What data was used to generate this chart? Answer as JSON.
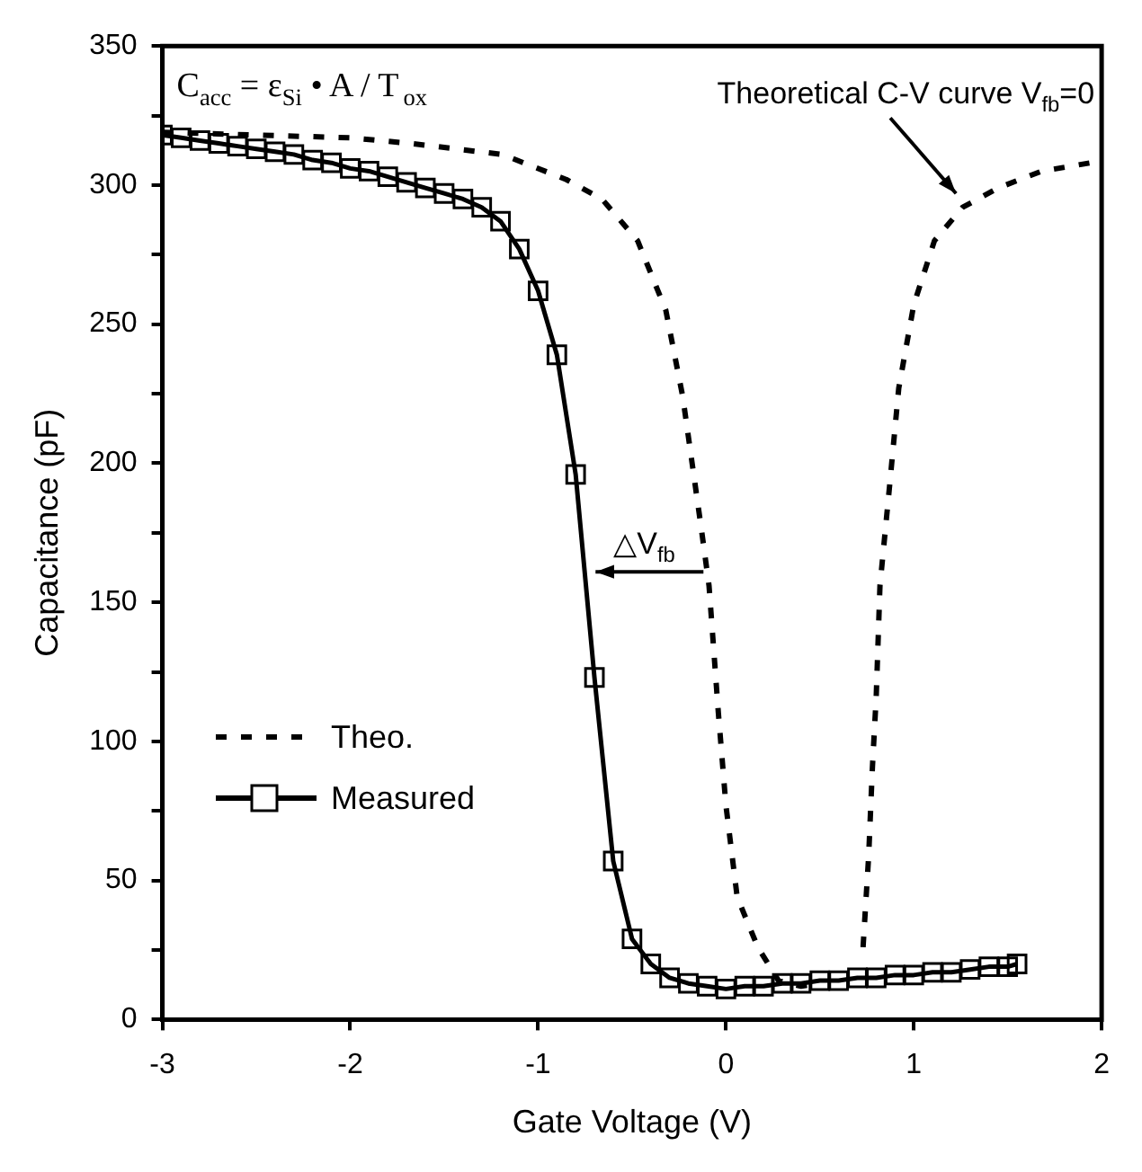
{
  "chart_data": {
    "type": "line",
    "xlabel": "Gate Voltage (V)",
    "ylabel": "Capacitance (pF)",
    "xlim": [
      -3,
      2
    ],
    "xticks": [
      -3,
      -2,
      -1,
      0,
      1,
      2
    ],
    "ylim": [
      0,
      350
    ],
    "yticks": [
      0,
      {
        "value": 25,
        "label": null
      },
      50,
      {
        "value": 75,
        "label": null
      },
      100,
      {
        "value": 125,
        "label": null
      },
      150,
      {
        "value": 175,
        "label": null
      },
      200,
      {
        "value": 225,
        "label": null
      },
      250,
      {
        "value": 275,
        "label": null
      },
      300,
      {
        "value": 325,
        "label": null
      },
      350
    ],
    "grid": false,
    "legend": "bottom left",
    "annotations": [
      "C$_{acc}$ = ε$_{Si}$ • A / T$_{ox}$",
      "Theoretical C-V curve V$_{fb}$=0",
      "△V$_{fb}$"
    ],
    "series": [
      {
        "name": "Theo.",
        "color": "#000000",
        "line_style": "dashed",
        "marker": "none",
        "x": [
          -3,
          -2.5,
          -2,
          -1.68,
          -1.19,
          -0.85,
          -0.66,
          -0.47,
          -0.32,
          -0.23,
          -0.13,
          -0.09,
          -0.04,
          0,
          0.06,
          0.17,
          0.28,
          0.4,
          0.5,
          0.6,
          0.73,
          0.76,
          0.78,
          0.8,
          0.82,
          0.87,
          0.92,
          1.0,
          1.11,
          1.26,
          1.45,
          1.68,
          1.94,
          2
        ],
        "values": [
          319,
          318,
          317,
          315,
          311,
          302,
          295,
          280,
          255,
          224,
          176,
          156,
          110,
          77,
          44,
          26,
          14,
          12,
          13,
          null,
          26,
          59,
          91,
          116,
          156,
          191,
          227,
          257,
          280,
          292,
          299,
          305,
          308,
          308
        ]
      },
      {
        "name": "Measured",
        "color": "#000000",
        "line_style": "solid",
        "marker": "square",
        "x": [
          -3,
          -2.9,
          -2.8,
          -2.7,
          -2.6,
          -2.5,
          -2.4,
          -2.3,
          -2.2,
          -2.1,
          -2.0,
          -1.9,
          -1.8,
          -1.7,
          -1.6,
          -1.5,
          -1.4,
          -1.3,
          -1.2,
          -1.1,
          -1.0,
          -0.9,
          -0.8,
          -0.7,
          -0.6,
          -0.5,
          -0.4,
          -0.3,
          -0.2,
          -0.1,
          0,
          0.1,
          0.2,
          0.3,
          0.4,
          0.5,
          0.6,
          0.7,
          0.8,
          0.9,
          1.0,
          1.1,
          1.2,
          1.3,
          1.4,
          1.5,
          1.55
        ],
        "values": [
          318,
          317,
          316,
          315,
          314,
          313,
          312,
          311,
          309,
          308,
          306,
          305,
          303,
          301,
          299,
          297,
          295,
          292,
          287,
          277,
          262,
          239,
          196,
          123,
          57,
          29,
          20,
          15,
          13,
          12,
          11,
          12,
          12,
          13,
          13,
          14,
          14,
          15,
          15,
          16,
          16,
          17,
          17,
          18,
          19,
          19,
          20
        ]
      }
    ]
  }
}
